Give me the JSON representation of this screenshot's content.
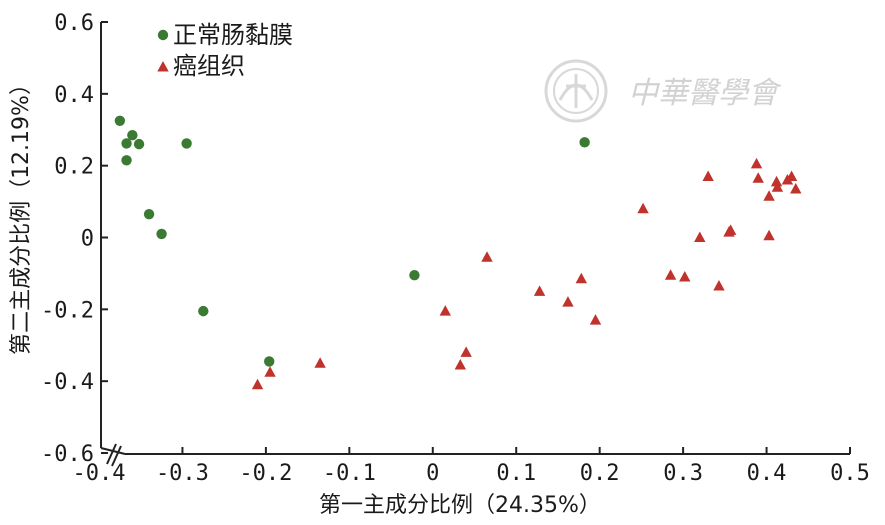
{
  "chart_data": {
    "type": "scatter",
    "xlabel": "第一主成分比例（24.35%）",
    "ylabel": "第二主成分比例（12.19%）",
    "xlim": [
      -0.4,
      0.5
    ],
    "ylim": [
      -0.6,
      0.6
    ],
    "xticks": [
      "-0.4",
      "-0.3",
      "-0.2",
      "-0.1",
      "0",
      "0.1",
      "0.2",
      "0.3",
      "0.4",
      "0.5"
    ],
    "yticks": [
      "-0.6",
      "-0.4",
      "-0.2",
      "0",
      "0.2",
      "0.4",
      "0.6"
    ],
    "grid": false,
    "legend_position": "top-left",
    "series": [
      {
        "name": "正常肠黏膜",
        "marker": "circle",
        "color": "#3a7a32",
        "points": [
          [
            -0.375,
            0.325
          ],
          [
            -0.36,
            0.285
          ],
          [
            -0.367,
            0.262
          ],
          [
            -0.352,
            0.26
          ],
          [
            -0.367,
            0.215
          ],
          [
            -0.34,
            0.065
          ],
          [
            -0.325,
            0.01
          ],
          [
            -0.295,
            0.262
          ],
          [
            -0.275,
            -0.205
          ],
          [
            -0.196,
            -0.345
          ],
          [
            -0.022,
            -0.105
          ],
          [
            0.182,
            0.265
          ]
        ]
      },
      {
        "name": "癌组织",
        "marker": "triangle",
        "color": "#c0322c",
        "points": [
          [
            -0.21,
            -0.41
          ],
          [
            -0.195,
            -0.375
          ],
          [
            -0.135,
            -0.35
          ],
          [
            0.015,
            -0.205
          ],
          [
            0.033,
            -0.355
          ],
          [
            0.04,
            -0.32
          ],
          [
            0.065,
            -0.055
          ],
          [
            0.128,
            -0.15
          ],
          [
            0.162,
            -0.18
          ],
          [
            0.178,
            -0.115
          ],
          [
            0.195,
            -0.23
          ],
          [
            0.252,
            0.08
          ],
          [
            0.285,
            -0.105
          ],
          [
            0.302,
            -0.11
          ],
          [
            0.32,
            0.0
          ],
          [
            0.33,
            0.17
          ],
          [
            0.343,
            -0.135
          ],
          [
            0.355,
            0.015
          ],
          [
            0.357,
            0.02
          ],
          [
            0.388,
            0.205
          ],
          [
            0.39,
            0.165
          ],
          [
            0.403,
            0.005
          ],
          [
            0.403,
            0.115
          ],
          [
            0.412,
            0.155
          ],
          [
            0.413,
            0.14
          ],
          [
            0.425,
            0.16
          ],
          [
            0.43,
            0.17
          ],
          [
            0.435,
            0.135
          ]
        ]
      }
    ]
  },
  "watermark": {
    "text": "中華醫學會",
    "emblem": "chinese-medical-association-seal",
    "color": "#d2d2d2"
  }
}
